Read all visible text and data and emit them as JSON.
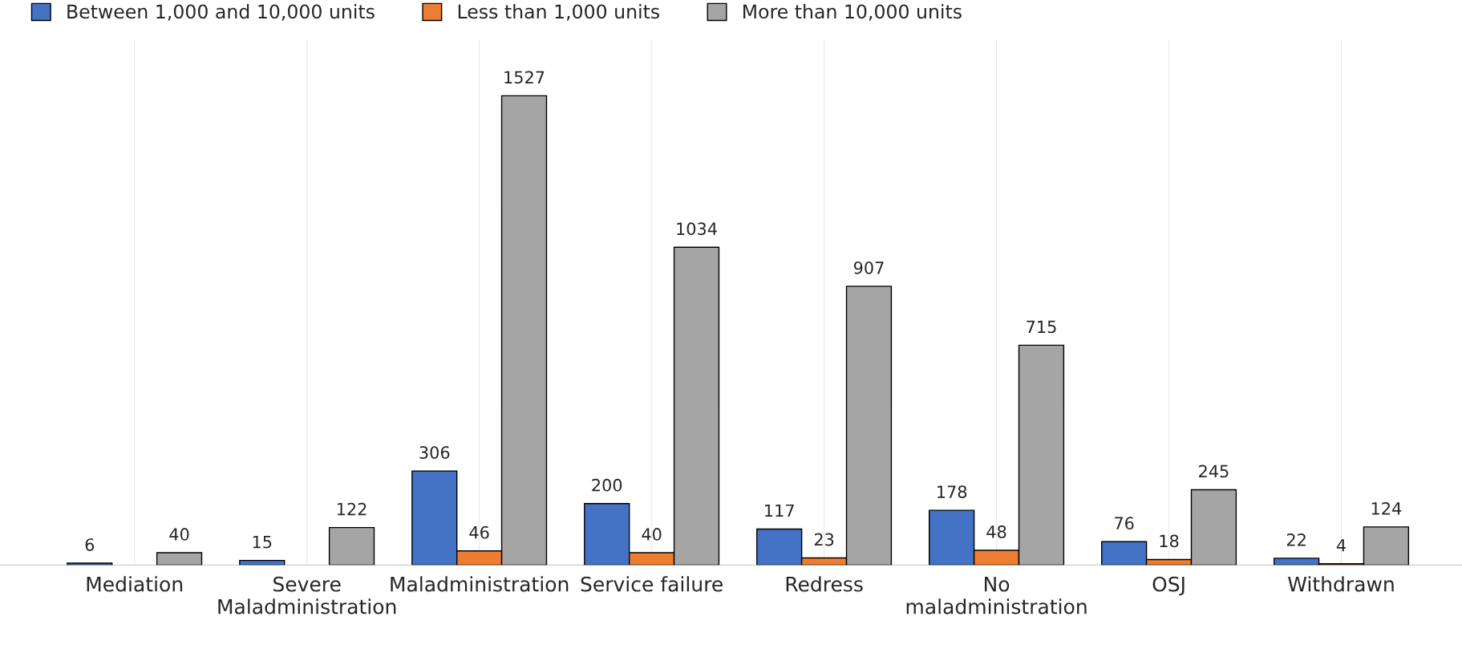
{
  "chart_data": {
    "type": "bar",
    "categories": [
      "Mediation",
      "Severe Maladministration",
      "Maladministration",
      "Service failure",
      "Redress",
      "No maladministration",
      "OSJ",
      "Withdrawn"
    ],
    "series": [
      {
        "name": "Between 1,000 and 10,000 units",
        "color": "#4472c4",
        "values": [
          6,
          15,
          306,
          200,
          117,
          178,
          76,
          22
        ]
      },
      {
        "name": "Less than 1,000 units",
        "color": "#ed7d31",
        "values": [
          null,
          null,
          46,
          40,
          23,
          48,
          18,
          4
        ]
      },
      {
        "name": "More than 10,000 units",
        "color": "#a5a5a5",
        "values": [
          40,
          122,
          1527,
          1034,
          907,
          715,
          245,
          124
        ]
      }
    ],
    "data_labels": true,
    "grid": "x",
    "legend": "top left"
  }
}
